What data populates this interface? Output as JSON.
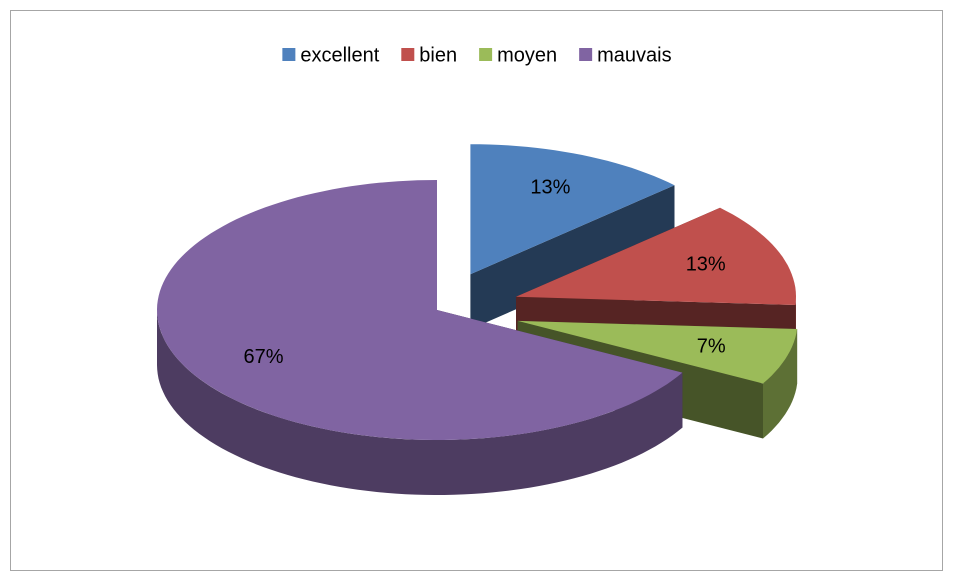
{
  "chart_data": {
    "type": "pie",
    "categories": [
      "excellent",
      "bien",
      "moyen",
      "mauvais"
    ],
    "values": [
      13,
      13,
      7,
      67
    ],
    "value_labels": [
      "13%",
      "13%",
      "7%",
      "67%"
    ],
    "colors": [
      "#4f81bd",
      "#c0504d",
      "#9bbb59",
      "#8064a2"
    ],
    "legend": "top"
  }
}
